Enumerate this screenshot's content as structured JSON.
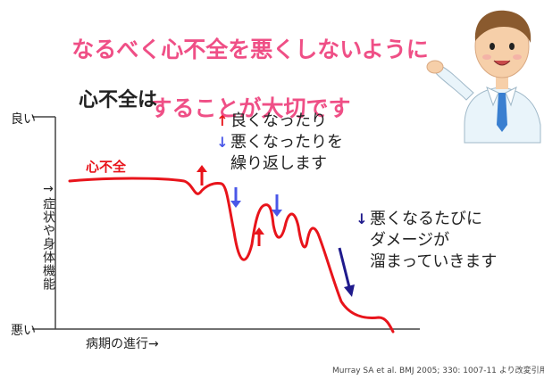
{
  "headline": {
    "line1": "なるべく心不全を悪くしないように",
    "line2": "することが大切です",
    "color": "#ef4f86"
  },
  "section_title": "心不全は",
  "y_axis": {
    "top_label": "良い",
    "bottom_label": "悪い",
    "label": "→症状や身体機能"
  },
  "x_axis": {
    "label": "病期の進行→"
  },
  "curve_label": "心不全",
  "notes": {
    "fluctuation": {
      "line1": "良くなったり",
      "line2": "悪くなったりを",
      "line3": "繰り返します",
      "up_arrow": "↑",
      "down_arrow": "↓"
    },
    "damage": {
      "line1": "悪くなるたびに",
      "line2": "ダメージが",
      "line3": "溜まっていきます",
      "arrow": "↓"
    }
  },
  "citation": "Murray SA et al. BMJ 2005; 330: 1007-11 より改変引用",
  "colors": {
    "curve": "#e8141b",
    "up_arrow": "#e8141b",
    "down_arrow": "#4a57e8",
    "damage_arrow": "#1f1a8c",
    "axis": "#444444"
  },
  "icons": [
    "doctor-illustration",
    "up-arrow-icon",
    "down-arrow-icon",
    "damage-arrow-icon"
  ]
}
